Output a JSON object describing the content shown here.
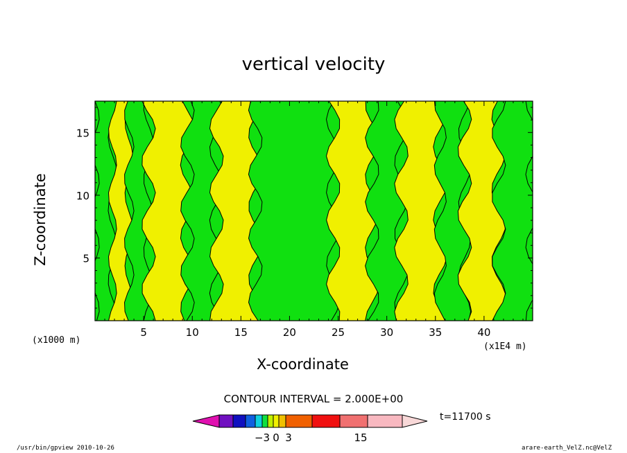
{
  "chart_data": {
    "type": "heatmap",
    "title": "vertical velocity",
    "xlabel": "X-coordinate",
    "ylabel": "Z-coordinate",
    "x_unit_left": "(x1000 m)",
    "x_unit_right": "(x1E4 m)",
    "xlim": [
      0,
      45
    ],
    "ylim": [
      0,
      17.5
    ],
    "xticks": [
      5,
      10,
      15,
      20,
      25,
      30,
      35,
      40
    ],
    "yticks": [
      5,
      10,
      15
    ],
    "contour_interval": "CONTOUR INTERVAL = 2.000E+00",
    "time": "t=11700 s",
    "colorbar": {
      "labels": [
        {
          "value": -3,
          "text": "−3"
        },
        {
          "value": 0,
          "text": "0"
        },
        {
          "value": 3,
          "text": "3"
        },
        {
          "value": 15,
          "text": "15"
        }
      ],
      "colors": [
        "#e010b0",
        "#7010c0",
        "#1010c0",
        "#1060e0",
        "#10d0e0",
        "#10e040",
        "#c0f000",
        "#f0f000",
        "#f0c000",
        "#f06000",
        "#f01010",
        "#f07070",
        "#f8b8c0",
        "#f8d8d8"
      ]
    },
    "bands": [
      {
        "x0": 0,
        "x1": 1.8,
        "level": "green"
      },
      {
        "x0": 1.8,
        "x1": 3.5,
        "level": "yellow"
      },
      {
        "x0": 3.5,
        "x1": 5.5,
        "level": "green"
      },
      {
        "x0": 5.5,
        "x1": 9.5,
        "level": "yellow"
      },
      {
        "x0": 9.5,
        "x1": 12.5,
        "level": "green"
      },
      {
        "x0": 12.5,
        "x1": 16.5,
        "level": "yellow"
      },
      {
        "x0": 16.5,
        "x1": 24.5,
        "level": "green"
      },
      {
        "x0": 24.5,
        "x1": 28.5,
        "level": "yellow"
      },
      {
        "x0": 28.5,
        "x1": 31.5,
        "level": "green"
      },
      {
        "x0": 31.5,
        "x1": 35.5,
        "level": "yellow"
      },
      {
        "x0": 35.5,
        "x1": 38.0,
        "level": "green"
      },
      {
        "x0": 38.0,
        "x1": 41.5,
        "level": "yellow"
      },
      {
        "x0": 41.5,
        "x1": 45,
        "level": "green"
      }
    ],
    "level_colors": {
      "green": "#10e010",
      "yellow": "#f0f000"
    }
  },
  "footer": {
    "left": "/usr/bin/gpview   2010-10-26",
    "right": "arare-earth_VelZ.nc@VelZ"
  }
}
